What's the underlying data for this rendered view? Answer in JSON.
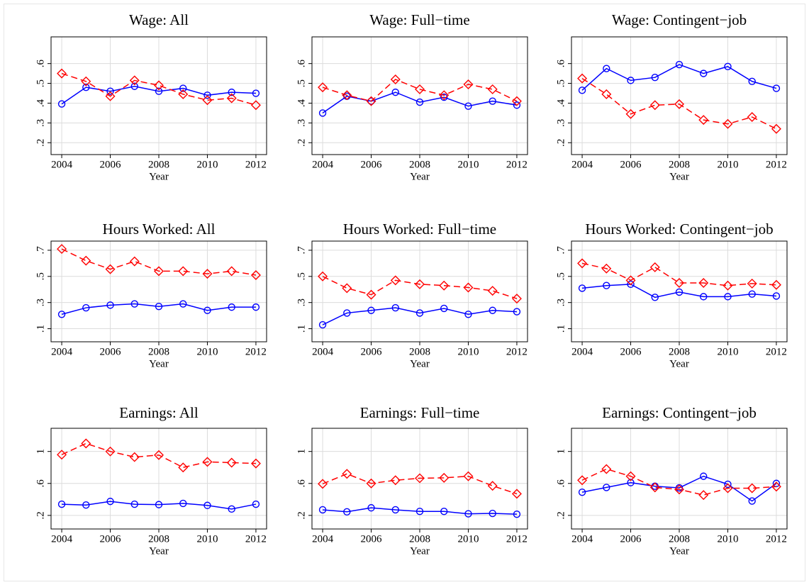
{
  "chart_data": [
    {
      "type": "line",
      "title": "Wage: All",
      "x_label": "Year",
      "x": [
        2004,
        2005,
        2006,
        2007,
        2008,
        2009,
        2010,
        2011,
        2012
      ],
      "xlim": [
        2003.56,
        2012.44
      ],
      "xticks": [
        2004,
        2006,
        2008,
        2010,
        2012
      ],
      "ylim": [
        0.14,
        0.735
      ],
      "yticks": [
        {
          "value": 0.2,
          "label": ".2"
        },
        {
          "value": 0.3,
          "label": ".3"
        },
        {
          "value": 0.4,
          "label": ".4"
        },
        {
          "value": 0.5,
          "label": ".5"
        },
        {
          "value": 0.6,
          "label": ".6"
        }
      ],
      "grid": true,
      "series": [
        {
          "color": "#0000ff",
          "values": [
            0.396,
            0.48,
            0.46,
            0.485,
            0.46,
            0.475,
            0.44,
            0.455,
            0.45
          ]
        },
        {
          "color": "#ff0000",
          "values": [
            0.55,
            0.51,
            0.435,
            0.515,
            0.49,
            0.445,
            0.415,
            0.425,
            0.39
          ]
        }
      ]
    },
    {
      "type": "line",
      "title": "Wage: Full−time",
      "x_label": "Year",
      "x": [
        2004,
        2005,
        2006,
        2007,
        2008,
        2009,
        2010,
        2011,
        2012
      ],
      "xlim": [
        2003.56,
        2012.44
      ],
      "xticks": [
        2004,
        2006,
        2008,
        2010,
        2012
      ],
      "ylim": [
        0.14,
        0.735
      ],
      "yticks": [
        {
          "value": 0.2,
          "label": ".2"
        },
        {
          "value": 0.3,
          "label": ".3"
        },
        {
          "value": 0.4,
          "label": ".4"
        },
        {
          "value": 0.5,
          "label": ".5"
        },
        {
          "value": 0.6,
          "label": ".6"
        }
      ],
      "grid": true,
      "series": [
        {
          "color": "#0000ff",
          "values": [
            0.35,
            0.435,
            0.41,
            0.455,
            0.405,
            0.43,
            0.385,
            0.41,
            0.39
          ]
        },
        {
          "color": "#ff0000",
          "values": [
            0.48,
            0.44,
            0.41,
            0.52,
            0.47,
            0.44,
            0.495,
            0.47,
            0.41
          ]
        }
      ]
    },
    {
      "type": "line",
      "title": "Wage: Contingent−job",
      "x_label": "Year",
      "x": [
        2004,
        2005,
        2006,
        2007,
        2008,
        2009,
        2010,
        2011,
        2012
      ],
      "xlim": [
        2003.56,
        2012.44
      ],
      "xticks": [
        2004,
        2006,
        2008,
        2010,
        2012
      ],
      "ylim": [
        0.14,
        0.735
      ],
      "yticks": [
        {
          "value": 0.2,
          "label": ".2"
        },
        {
          "value": 0.3,
          "label": ".3"
        },
        {
          "value": 0.4,
          "label": ".4"
        },
        {
          "value": 0.5,
          "label": ".5"
        },
        {
          "value": 0.6,
          "label": ".6"
        }
      ],
      "grid": true,
      "series": [
        {
          "color": "#0000ff",
          "values": [
            0.465,
            0.575,
            0.515,
            0.53,
            0.595,
            0.55,
            0.585,
            0.51,
            0.475
          ]
        },
        {
          "color": "#ff0000",
          "values": [
            0.525,
            0.445,
            0.345,
            0.39,
            0.395,
            0.315,
            0.295,
            0.33,
            0.27
          ]
        }
      ]
    },
    {
      "type": "line",
      "title": "Hours Worked: All",
      "x_label": "Year",
      "x": [
        2004,
        2005,
        2006,
        2007,
        2008,
        2009,
        2010,
        2011,
        2012
      ],
      "xlim": [
        2003.56,
        2012.44
      ],
      "xticks": [
        2004,
        2006,
        2008,
        2010,
        2012
      ],
      "ylim": [
        0.0,
        0.77
      ],
      "yticks": [
        {
          "value": 0.1,
          "label": ".1"
        },
        {
          "value": 0.3,
          "label": ".3"
        },
        {
          "value": 0.5,
          "label": ".5"
        },
        {
          "value": 0.7,
          "label": ".7"
        }
      ],
      "grid": true,
      "series": [
        {
          "color": "#0000ff",
          "values": [
            0.21,
            0.26,
            0.28,
            0.29,
            0.27,
            0.29,
            0.24,
            0.265,
            0.265
          ]
        },
        {
          "color": "#ff0000",
          "values": [
            0.71,
            0.62,
            0.555,
            0.615,
            0.54,
            0.54,
            0.52,
            0.54,
            0.51
          ]
        }
      ]
    },
    {
      "type": "line",
      "title": "Hours Worked: Full−time",
      "x_label": "Year",
      "x": [
        2004,
        2005,
        2006,
        2007,
        2008,
        2009,
        2010,
        2011,
        2012
      ],
      "xlim": [
        2003.56,
        2012.44
      ],
      "xticks": [
        2004,
        2006,
        2008,
        2010,
        2012
      ],
      "ylim": [
        0.0,
        0.77
      ],
      "yticks": [
        {
          "value": 0.1,
          "label": ".1"
        },
        {
          "value": 0.3,
          "label": ".3"
        },
        {
          "value": 0.5,
          "label": ".5"
        },
        {
          "value": 0.7,
          "label": ".7"
        }
      ],
      "grid": true,
      "series": [
        {
          "color": "#0000ff",
          "values": [
            0.13,
            0.22,
            0.24,
            0.26,
            0.22,
            0.255,
            0.21,
            0.24,
            0.23
          ]
        },
        {
          "color": "#ff0000",
          "values": [
            0.5,
            0.41,
            0.36,
            0.47,
            0.44,
            0.43,
            0.415,
            0.39,
            0.33
          ]
        }
      ]
    },
    {
      "type": "line",
      "title": "Hours Worked: Contingent−job",
      "x_label": "Year",
      "x": [
        2004,
        2005,
        2006,
        2007,
        2008,
        2009,
        2010,
        2011,
        2012
      ],
      "xlim": [
        2003.56,
        2012.44
      ],
      "xticks": [
        2004,
        2006,
        2008,
        2010,
        2012
      ],
      "ylim": [
        0.0,
        0.77
      ],
      "yticks": [
        {
          "value": 0.1,
          "label": ".1"
        },
        {
          "value": 0.3,
          "label": ".3"
        },
        {
          "value": 0.5,
          "label": ".5"
        },
        {
          "value": 0.7,
          "label": ".7"
        }
      ],
      "grid": true,
      "series": [
        {
          "color": "#0000ff",
          "values": [
            0.41,
            0.43,
            0.44,
            0.34,
            0.38,
            0.345,
            0.345,
            0.365,
            0.35
          ]
        },
        {
          "color": "#ff0000",
          "values": [
            0.6,
            0.56,
            0.47,
            0.57,
            0.45,
            0.45,
            0.43,
            0.445,
            0.435
          ]
        }
      ]
    },
    {
      "type": "line",
      "title": "Earnings: All",
      "x_label": "Year",
      "x": [
        2004,
        2005,
        2006,
        2007,
        2008,
        2009,
        2010,
        2011,
        2012
      ],
      "xlim": [
        2003.56,
        2012.44
      ],
      "xticks": [
        2004,
        2006,
        2008,
        2010,
        2012
      ],
      "ylim": [
        0.03,
        1.29
      ],
      "yticks": [
        {
          "value": 0.2,
          "label": ".2"
        },
        {
          "value": 0.6,
          "label": ".6"
        },
        1
      ],
      "grid": true,
      "series": [
        {
          "color": "#0000ff",
          "values": [
            0.34,
            0.33,
            0.375,
            0.34,
            0.335,
            0.35,
            0.325,
            0.28,
            0.34
          ]
        },
        {
          "color": "#ff0000",
          "values": [
            0.96,
            1.1,
            1.0,
            0.93,
            0.955,
            0.8,
            0.87,
            0.86,
            0.85
          ]
        }
      ]
    },
    {
      "type": "line",
      "title": "Earnings: Full−time",
      "x_label": "Year",
      "x": [
        2004,
        2005,
        2006,
        2007,
        2008,
        2009,
        2010,
        2011,
        2012
      ],
      "xlim": [
        2003.56,
        2012.44
      ],
      "xticks": [
        2004,
        2006,
        2008,
        2010,
        2012
      ],
      "ylim": [
        0.03,
        1.29
      ],
      "yticks": [
        {
          "value": 0.2,
          "label": ".2"
        },
        {
          "value": 0.6,
          "label": ".6"
        },
        1
      ],
      "grid": true,
      "series": [
        {
          "color": "#0000ff",
          "values": [
            0.27,
            0.245,
            0.295,
            0.27,
            0.25,
            0.25,
            0.22,
            0.225,
            0.215
          ]
        },
        {
          "color": "#ff0000",
          "values": [
            0.595,
            0.72,
            0.6,
            0.64,
            0.665,
            0.67,
            0.69,
            0.57,
            0.47
          ]
        }
      ]
    },
    {
      "type": "line",
      "title": "Earnings: Contingent−job",
      "x_label": "Year",
      "x": [
        2004,
        2005,
        2006,
        2007,
        2008,
        2009,
        2010,
        2011,
        2012
      ],
      "xlim": [
        2003.56,
        2012.44
      ],
      "xticks": [
        2004,
        2006,
        2008,
        2010,
        2012
      ],
      "ylim": [
        0.03,
        1.29
      ],
      "yticks": [
        {
          "value": 0.2,
          "label": ".2"
        },
        {
          "value": 0.6,
          "label": ".6"
        },
        1
      ],
      "grid": true,
      "series": [
        {
          "color": "#0000ff",
          "values": [
            0.49,
            0.55,
            0.61,
            0.565,
            0.545,
            0.69,
            0.59,
            0.38,
            0.6
          ]
        },
        {
          "color": "#ff0000",
          "values": [
            0.64,
            0.78,
            0.69,
            0.55,
            0.525,
            0.455,
            0.54,
            0.54,
            0.56
          ]
        }
      ]
    }
  ]
}
